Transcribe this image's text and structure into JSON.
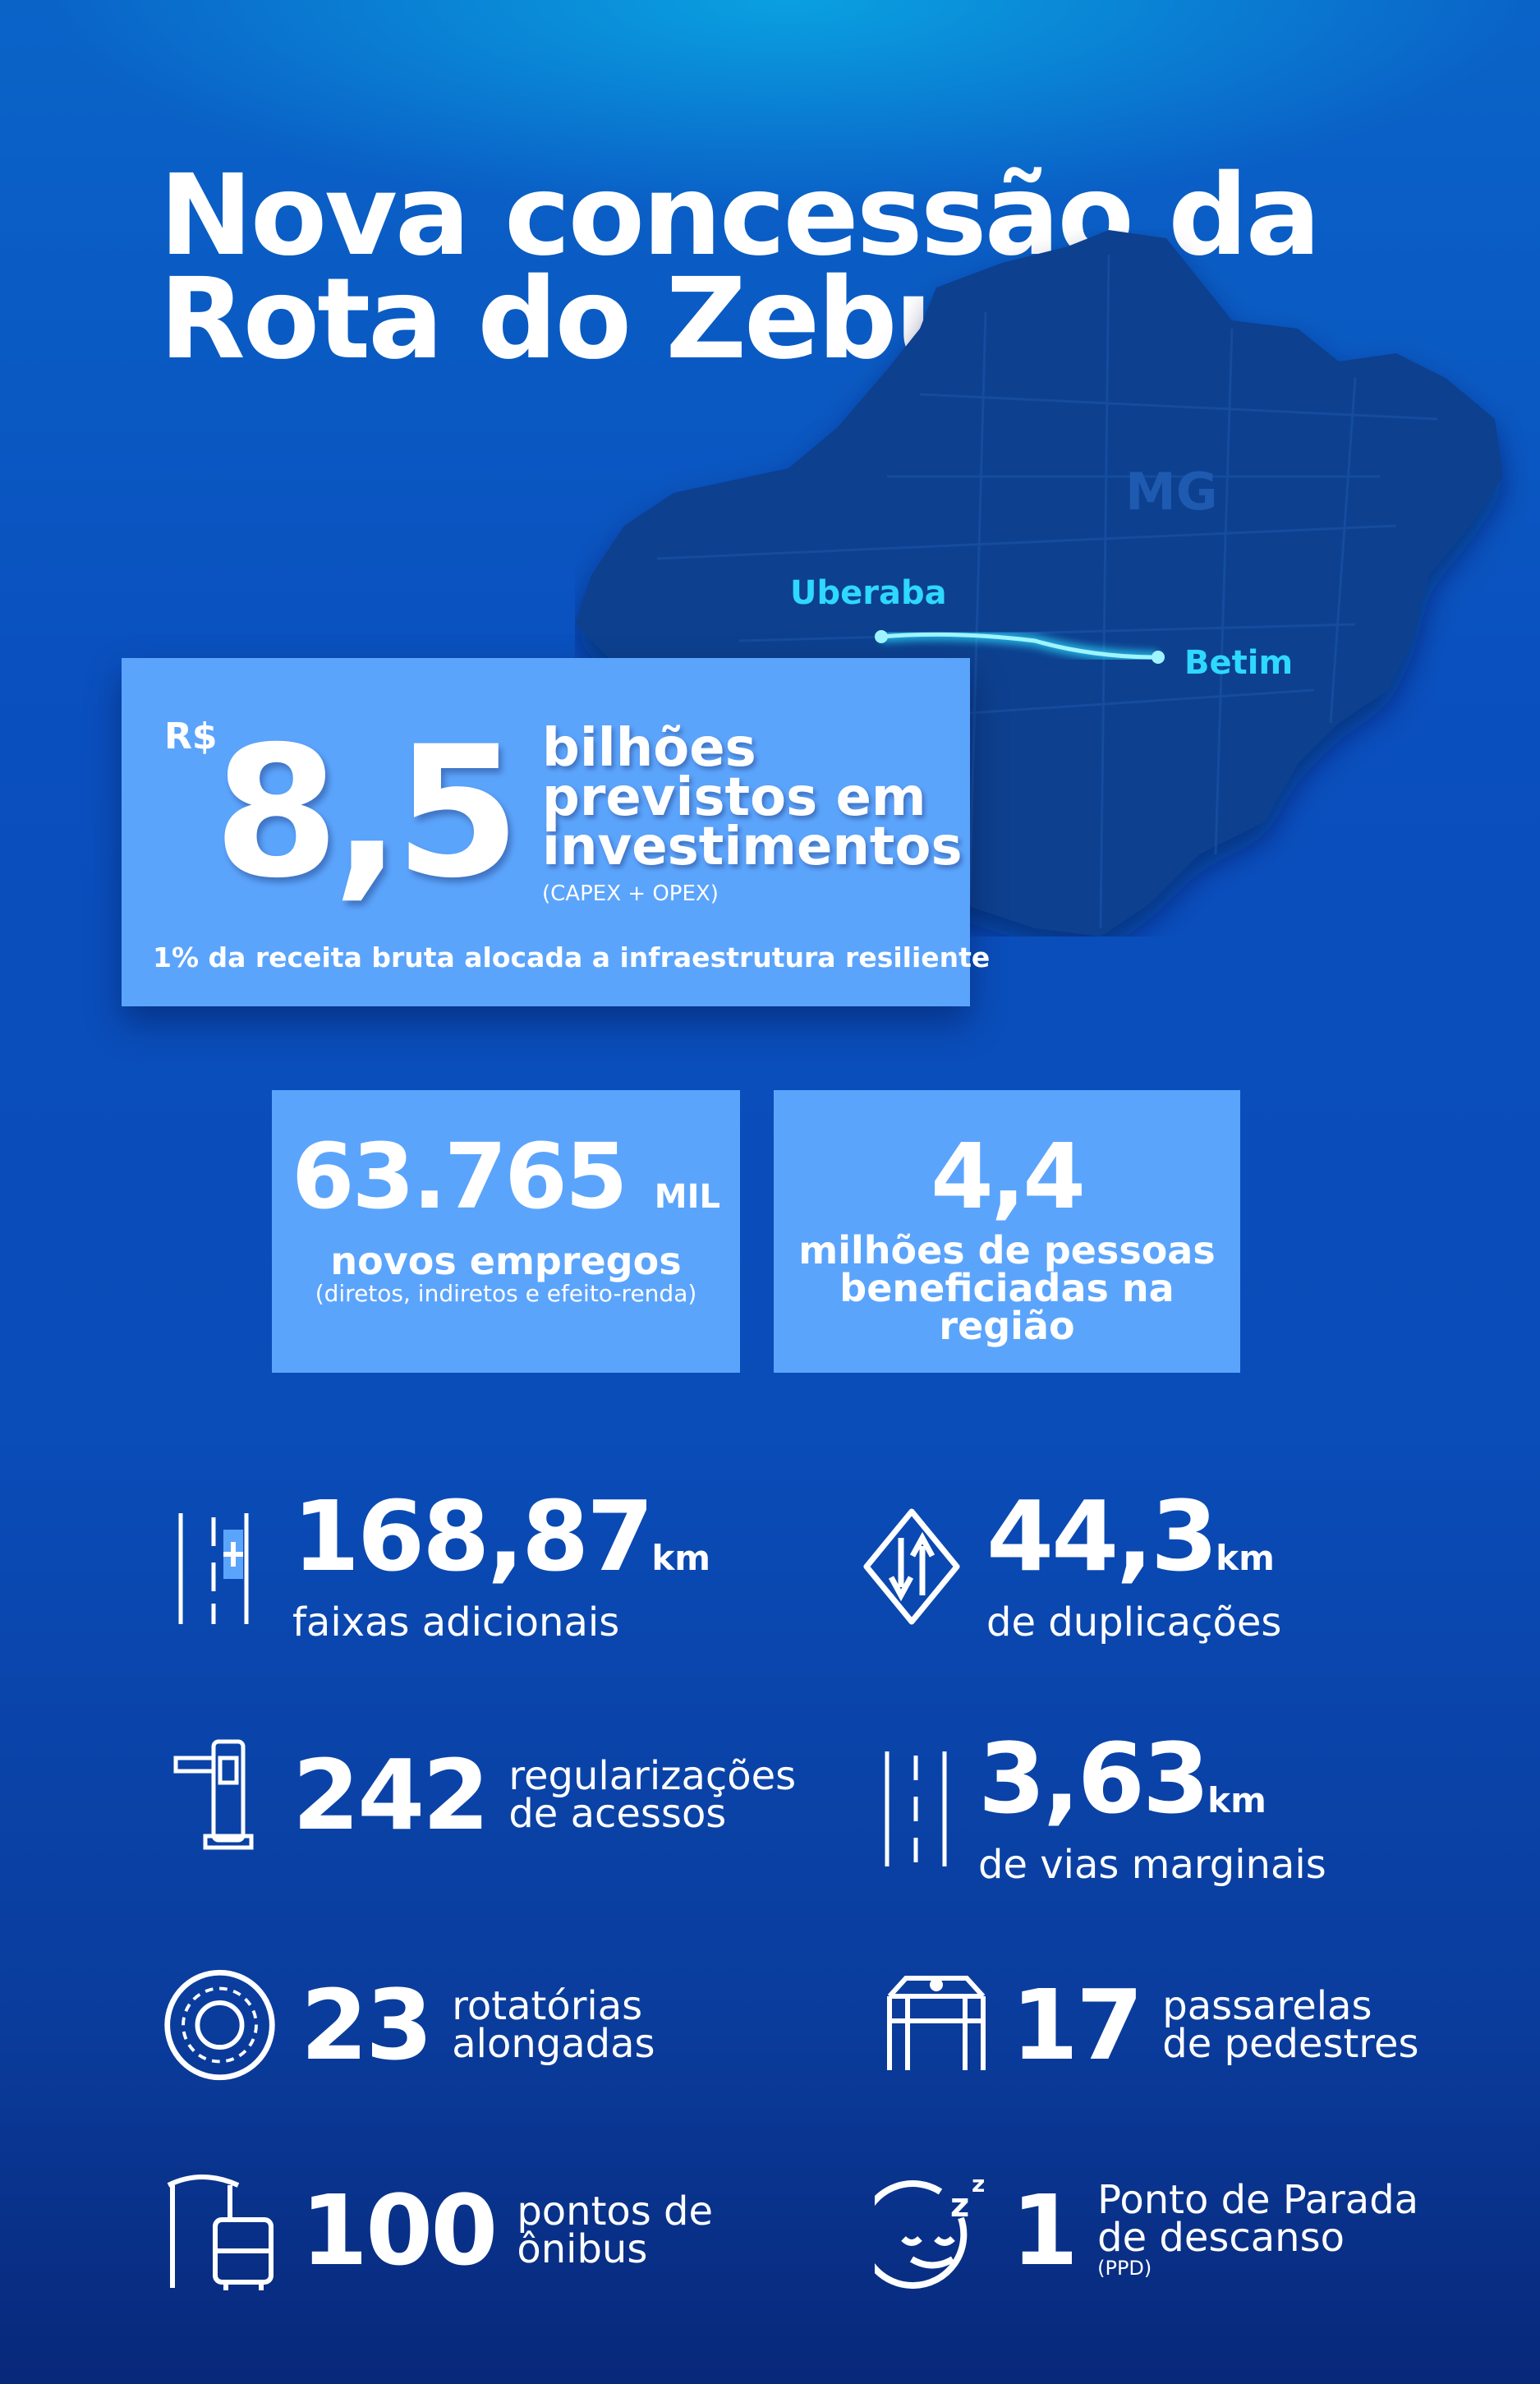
{
  "title": "Nova concessão da Rota do Zebu",
  "map": {
    "state": "MG",
    "city_start": "Uberaba",
    "city_end": "Betim",
    "route_color": "#2ee0ff",
    "land_color": "#0b3f8f"
  },
  "investment": {
    "currency": "R$",
    "value": "8,5",
    "label_1": "bilhões",
    "label_2": "previstos em",
    "label_3": "investimentos",
    "note": "(CAPEX + OPEX)",
    "resilience": "1% da receita bruta alocada a infraestrutura resiliente"
  },
  "jobs": {
    "value": "63.765",
    "unit": "MIL",
    "label": "novos empregos",
    "note": "(diretos, indiretos e efeito-renda)"
  },
  "people": {
    "value": "4,4",
    "label_1": "milhões de pessoas",
    "label_2": "beneficiadas na região"
  },
  "stats": [
    {
      "icon": "additional-lane-icon",
      "value": "168,87",
      "unit": "km",
      "label": "faixas adicionais"
    },
    {
      "icon": "two-way-sign-icon",
      "value": "44,3",
      "unit": "km",
      "label": "de duplicações"
    },
    {
      "icon": "toll-barrier-icon",
      "value": "242",
      "label_1": "regularizações",
      "label_2": "de acessos"
    },
    {
      "icon": "road-lanes-icon",
      "value": "3,63",
      "unit": "km",
      "label": "de vias marginais"
    },
    {
      "icon": "roundabout-icon",
      "value": "23",
      "label_1": "rotatórias",
      "label_2": "alongadas"
    },
    {
      "icon": "pedestrian-bridge-icon",
      "value": "17",
      "label_1": "passarelas",
      "label_2": "de pedestres"
    },
    {
      "icon": "bus-stop-icon",
      "value": "100",
      "label_1": "pontos de",
      "label_2": "ônibus"
    },
    {
      "icon": "rest-stop-icon",
      "value": "1",
      "label_1": "Ponto de Parada",
      "label_2": "de descanso",
      "note": "(PPD)"
    }
  ],
  "colors": {
    "box": "#5ba4fc",
    "background": "#0a4cb8"
  }
}
